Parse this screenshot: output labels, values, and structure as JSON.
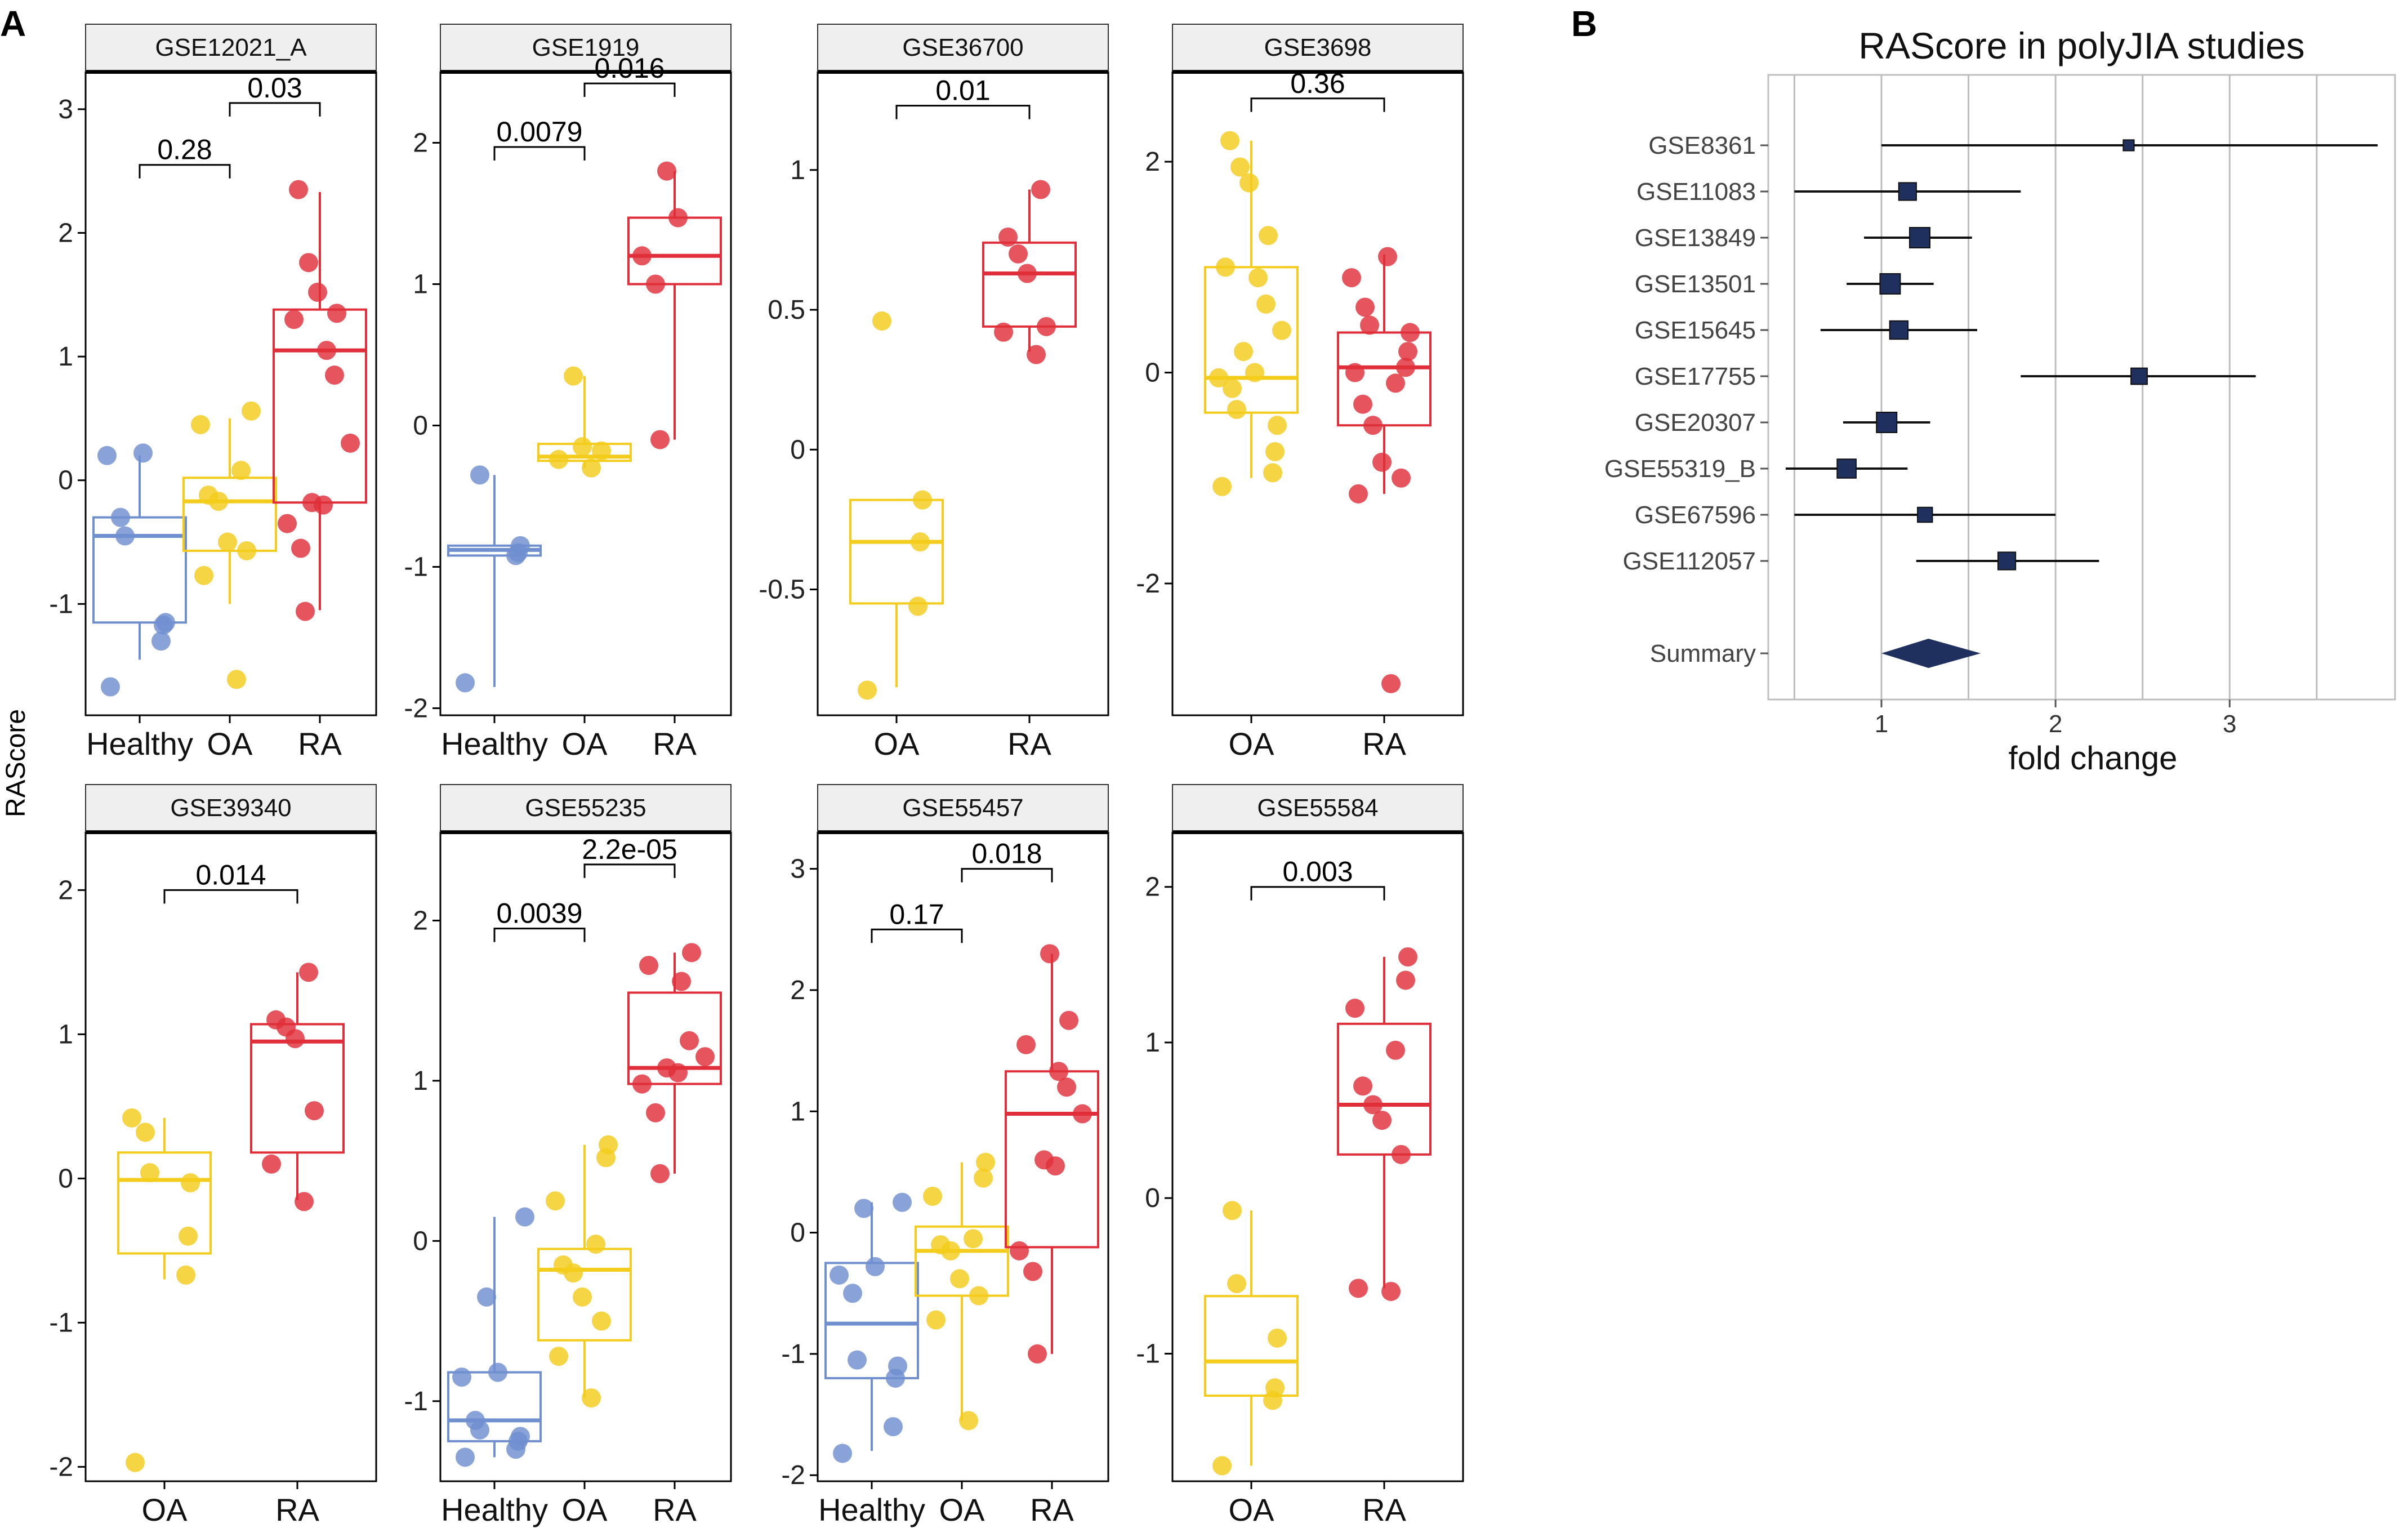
{
  "figure": {
    "panel_a_label": "A",
    "panel_b_label": "B",
    "y_axis_title": "RAScore"
  },
  "colors": {
    "Healthy": "#6f8fcf",
    "OA": "#f4cc1b",
    "RA": "#e02f3a",
    "forest": "#1f2f5e"
  },
  "chart_data": [
    {
      "type": "box",
      "title": "GSE12021_A",
      "ylabel": "RAScore",
      "categories": [
        "Healthy",
        "OA",
        "RA"
      ],
      "ylim": [
        -1.9,
        3.3
      ],
      "yticks": [
        -1,
        0,
        1,
        2,
        3
      ],
      "series": [
        {
          "name": "Healthy",
          "box": [
            -1.45,
            -1.15,
            -0.45,
            -0.3,
            0.2
          ],
          "points": [
            -1.67,
            -1.3,
            -1.17,
            -1.15,
            -0.45,
            -0.3,
            0.2,
            0.22
          ]
        },
        {
          "name": "OA",
          "box": [
            -1.0,
            -0.57,
            -0.17,
            0.02,
            0.5
          ],
          "points": [
            -1.61,
            -0.77,
            -0.57,
            -0.5,
            -0.17,
            -0.12,
            0.08,
            0.45,
            0.56
          ]
        },
        {
          "name": "RA",
          "box": [
            -1.05,
            -0.18,
            1.05,
            1.38,
            2.33
          ],
          "points": [
            -1.06,
            -0.55,
            -0.35,
            -0.2,
            -0.18,
            0.3,
            0.85,
            1.05,
            1.3,
            1.35,
            1.52,
            1.76,
            2.35
          ]
        }
      ],
      "comparisons": [
        {
          "groups": [
            "Healthy",
            "OA"
          ],
          "p": "0.28",
          "y": 2.55
        },
        {
          "groups": [
            "OA",
            "RA"
          ],
          "p": "0.03",
          "y": 3.05
        }
      ]
    },
    {
      "type": "box",
      "title": "GSE1919",
      "categories": [
        "Healthy",
        "OA",
        "RA"
      ],
      "ylim": [
        -2.05,
        2.5
      ],
      "yticks": [
        -2,
        -1,
        0,
        1,
        2
      ],
      "series": [
        {
          "name": "Healthy",
          "box": [
            -1.85,
            -0.92,
            -0.88,
            -0.85,
            -0.35
          ],
          "points": [
            -1.82,
            -0.92,
            -0.9,
            -0.85,
            -0.35
          ]
        },
        {
          "name": "OA",
          "box": [
            -0.3,
            -0.25,
            -0.22,
            -0.13,
            0.35
          ],
          "points": [
            -0.3,
            -0.24,
            -0.18,
            -0.15,
            0.35
          ]
        },
        {
          "name": "RA",
          "box": [
            -0.1,
            1.0,
            1.2,
            1.47,
            1.8
          ],
          "points": [
            -0.1,
            1.0,
            1.2,
            1.47,
            1.8
          ]
        }
      ],
      "comparisons": [
        {
          "groups": [
            "Healthy",
            "OA"
          ],
          "p": "0.0079",
          "y": 1.97
        },
        {
          "groups": [
            "OA",
            "RA"
          ],
          "p": "0.016",
          "y": 2.42
        }
      ]
    },
    {
      "type": "box",
      "title": "GSE36700",
      "categories": [
        "OA",
        "RA"
      ],
      "ylim": [
        -0.95,
        1.35
      ],
      "yticks": [
        -0.5,
        0.0,
        0.5,
        1.0
      ],
      "series": [
        {
          "name": "OA",
          "box": [
            -0.85,
            -0.55,
            -0.33,
            -0.18,
            -0.18
          ],
          "points": [
            -0.86,
            -0.56,
            -0.33,
            -0.18,
            0.46
          ]
        },
        {
          "name": "RA",
          "box": [
            0.35,
            0.44,
            0.63,
            0.74,
            0.93
          ],
          "points": [
            0.34,
            0.42,
            0.44,
            0.63,
            0.7,
            0.76,
            0.93
          ]
        }
      ],
      "comparisons": [
        {
          "groups": [
            "OA",
            "RA"
          ],
          "p": "0.01",
          "y": 1.23
        }
      ]
    },
    {
      "type": "box",
      "title": "GSE3698",
      "categories": [
        "OA",
        "RA"
      ],
      "ylim": [
        -3.25,
        2.85
      ],
      "yticks": [
        -2,
        0,
        2
      ],
      "series": [
        {
          "name": "OA",
          "box": [
            -1.0,
            -0.38,
            -0.05,
            1.0,
            2.2
          ],
          "points": [
            -1.08,
            -0.95,
            -0.75,
            -0.5,
            -0.35,
            -0.15,
            -0.05,
            0.0,
            0.2,
            0.4,
            0.65,
            0.9,
            1.0,
            1.3,
            1.8,
            1.95,
            2.2
          ]
        },
        {
          "name": "RA",
          "box": [
            -1.15,
            -0.5,
            0.05,
            0.38,
            1.12
          ],
          "points": [
            -2.95,
            -1.15,
            -1.0,
            -0.85,
            -0.5,
            -0.3,
            -0.1,
            0.0,
            0.05,
            0.2,
            0.38,
            0.45,
            0.62,
            0.9,
            1.1
          ]
        }
      ],
      "comparisons": [
        {
          "groups": [
            "OA",
            "RA"
          ],
          "p": "0.36",
          "y": 2.6
        }
      ]
    },
    {
      "type": "box",
      "title": "GSE39340",
      "categories": [
        "OA",
        "RA"
      ],
      "ylim": [
        -2.1,
        2.4
      ],
      "yticks": [
        -2,
        -1,
        0,
        1,
        2
      ],
      "series": [
        {
          "name": "OA",
          "box": [
            -0.7,
            -0.52,
            -0.01,
            0.18,
            0.42
          ],
          "points": [
            -1.97,
            -0.67,
            -0.4,
            -0.03,
            0.04,
            0.32,
            0.42
          ]
        },
        {
          "name": "RA",
          "box": [
            -0.15,
            0.18,
            0.95,
            1.07,
            1.43
          ],
          "points": [
            -0.16,
            0.1,
            0.47,
            0.97,
            1.05,
            1.1,
            1.43
          ]
        }
      ],
      "comparisons": [
        {
          "groups": [
            "OA",
            "RA"
          ],
          "p": "0.014",
          "y": 2.0
        }
      ]
    },
    {
      "type": "box",
      "title": "GSE55235",
      "categories": [
        "Healthy",
        "OA",
        "RA"
      ],
      "ylim": [
        -1.5,
        2.55
      ],
      "yticks": [
        -1,
        0,
        1,
        2
      ],
      "series": [
        {
          "name": "Healthy",
          "box": [
            -1.35,
            -1.25,
            -1.12,
            -0.82,
            0.15
          ],
          "points": [
            -1.35,
            -1.3,
            -1.25,
            -1.22,
            -1.18,
            -1.12,
            -0.85,
            -0.82,
            -0.35,
            0.15
          ]
        },
        {
          "name": "OA",
          "box": [
            -0.98,
            -0.62,
            -0.18,
            -0.05,
            0.6
          ],
          "points": [
            -0.98,
            -0.72,
            -0.5,
            -0.35,
            -0.2,
            -0.15,
            -0.02,
            0.25,
            0.52,
            0.6
          ]
        },
        {
          "name": "RA",
          "box": [
            0.42,
            0.98,
            1.08,
            1.55,
            1.8
          ],
          "points": [
            0.42,
            0.8,
            0.98,
            1.05,
            1.08,
            1.15,
            1.25,
            1.62,
            1.72,
            1.8
          ]
        }
      ],
      "comparisons": [
        {
          "groups": [
            "Healthy",
            "OA"
          ],
          "p": "0.0039",
          "y": 1.95
        },
        {
          "groups": [
            "OA",
            "RA"
          ],
          "p": "2.2e-05",
          "y": 2.35
        }
      ]
    },
    {
      "type": "box",
      "title": "GSE55457",
      "categories": [
        "Healthy",
        "OA",
        "RA"
      ],
      "ylim": [
        -2.05,
        3.3
      ],
      "yticks": [
        -2,
        -1,
        0,
        1,
        2,
        3
      ],
      "series": [
        {
          "name": "Healthy",
          "box": [
            -1.8,
            -1.2,
            -0.75,
            -0.25,
            0.25
          ],
          "points": [
            -1.82,
            -1.6,
            -1.2,
            -1.1,
            -1.05,
            -0.5,
            -0.35,
            -0.28,
            0.2,
            0.25
          ]
        },
        {
          "name": "OA",
          "box": [
            -1.55,
            -0.52,
            -0.15,
            0.05,
            0.58
          ],
          "points": [
            -1.55,
            -0.72,
            -0.52,
            -0.38,
            -0.15,
            -0.1,
            -0.05,
            0.3,
            0.45,
            0.58
          ]
        },
        {
          "name": "RA",
          "box": [
            -1.0,
            -0.12,
            0.98,
            1.33,
            2.3
          ],
          "points": [
            -1.0,
            -0.32,
            -0.15,
            0.55,
            0.6,
            0.98,
            1.2,
            1.33,
            1.55,
            1.75,
            2.3
          ]
        }
      ],
      "comparisons": [
        {
          "groups": [
            "Healthy",
            "OA"
          ],
          "p": "0.17",
          "y": 2.5
        },
        {
          "groups": [
            "OA",
            "RA"
          ],
          "p": "0.018",
          "y": 3.0
        }
      ]
    },
    {
      "type": "box",
      "title": "GSE55584",
      "categories": [
        "OA",
        "RA"
      ],
      "ylim": [
        -1.82,
        2.35
      ],
      "yticks": [
        -1,
        0,
        1,
        2
      ],
      "series": [
        {
          "name": "OA",
          "box": [
            -1.72,
            -1.27,
            -1.05,
            -0.63,
            -0.08
          ],
          "points": [
            -1.72,
            -1.3,
            -1.22,
            -0.9,
            -0.55,
            -0.08
          ]
        },
        {
          "name": "RA",
          "box": [
            -0.58,
            0.28,
            0.6,
            1.12,
            1.55
          ],
          "points": [
            -0.6,
            -0.58,
            0.28,
            0.5,
            0.6,
            0.72,
            0.95,
            1.22,
            1.4,
            1.55
          ]
        }
      ],
      "comparisons": [
        {
          "groups": [
            "OA",
            "RA"
          ],
          "p": "0.003",
          "y": 2.0
        }
      ]
    },
    {
      "type": "forest",
      "title": "RAScore in polyJIA studies",
      "xlabel": "fold change",
      "xlim": [
        0.35,
        3.95
      ],
      "xticks": [
        1,
        2,
        3
      ],
      "studies": [
        {
          "name": "GSE8361",
          "est": 2.42,
          "lo": 1.0,
          "hi": 3.85,
          "weight": 0.3
        },
        {
          "name": "GSE11083",
          "est": 1.15,
          "lo": 0.5,
          "hi": 1.8,
          "weight": 0.8
        },
        {
          "name": "GSE13849",
          "est": 1.22,
          "lo": 0.9,
          "hi": 1.52,
          "weight": 1.0
        },
        {
          "name": "GSE13501",
          "est": 1.05,
          "lo": 0.8,
          "hi": 1.3,
          "weight": 1.0
        },
        {
          "name": "GSE15645",
          "est": 1.1,
          "lo": 0.65,
          "hi": 1.55,
          "weight": 0.85
        },
        {
          "name": "GSE17755",
          "est": 2.48,
          "lo": 1.8,
          "hi": 3.15,
          "weight": 0.7
        },
        {
          "name": "GSE20307",
          "est": 1.03,
          "lo": 0.78,
          "hi": 1.28,
          "weight": 1.0
        },
        {
          "name": "GSE55319_B",
          "est": 0.8,
          "lo": 0.45,
          "hi": 1.15,
          "weight": 0.9
        },
        {
          "name": "GSE67596",
          "est": 1.25,
          "lo": 0.5,
          "hi": 2.0,
          "weight": 0.6
        },
        {
          "name": "GSE112057",
          "est": 1.72,
          "lo": 1.2,
          "hi": 2.25,
          "weight": 0.8
        }
      ],
      "summary": {
        "name": "Summary",
        "est": 1.27,
        "lo": 1.0,
        "hi": 1.57
      }
    }
  ]
}
